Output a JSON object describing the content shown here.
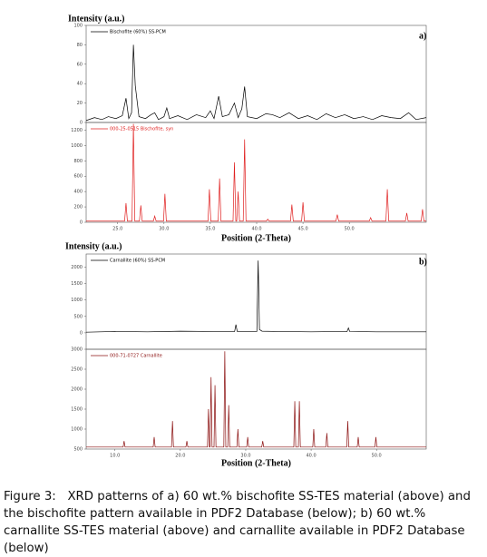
{
  "chart_data": [
    {
      "type": "line",
      "y_label": "Intensity (a.u.)",
      "panel_label": "a)",
      "xlim": [
        21.6,
        58.3
      ],
      "ylim": [
        0,
        100
      ],
      "yticks": [
        0,
        20,
        40,
        60,
        80,
        100
      ],
      "series": [
        {
          "name": "Bischofite (60%) SS-PCM",
          "color": "#000000",
          "x": [
            21.6,
            22.5,
            23.3,
            24.0,
            24.8,
            25.5,
            25.9,
            26.2,
            26.5,
            26.7,
            26.9,
            27.3,
            28.0,
            28.6,
            29.0,
            29.4,
            30.0,
            30.3,
            30.6,
            31.5,
            32.5,
            33.5,
            34.5,
            35.0,
            35.4,
            35.9,
            36.3,
            37.0,
            37.6,
            38.0,
            38.4,
            38.7,
            39.0,
            40.0,
            41.0,
            41.7,
            42.5,
            43.5,
            44.5,
            45.5,
            46.5,
            47.5,
            48.5,
            49.5,
            50.5,
            51.5,
            52.5,
            53.5,
            54.5,
            55.5,
            56.4,
            57.2,
            58.3
          ],
          "values": [
            2,
            5,
            3,
            6,
            4,
            7,
            25,
            4,
            10,
            80,
            38,
            6,
            4,
            8,
            10,
            3,
            6,
            15,
            4,
            7,
            3,
            8,
            5,
            12,
            4,
            27,
            6,
            8,
            20,
            5,
            14,
            37,
            6,
            4,
            9,
            8,
            5,
            10,
            4,
            7,
            3,
            9,
            5,
            8,
            4,
            6,
            3,
            7,
            5,
            4,
            10,
            3,
            5
          ]
        }
      ]
    },
    {
      "type": "line",
      "x_label": "Position (2-Theta)",
      "xlim": [
        21.6,
        58.3
      ],
      "ylim": [
        0,
        1300
      ],
      "yticks": [
        0,
        200,
        400,
        600,
        800,
        1000,
        1200
      ],
      "xticks": [
        {
          "value": 25,
          "label": "25.0"
        },
        {
          "value": 30,
          "label": "30.0"
        },
        {
          "value": 35,
          "label": "35.0"
        },
        {
          "value": 40,
          "label": "40.0"
        },
        {
          "value": 45,
          "label": "45.0"
        },
        {
          "value": 50,
          "label": "50.0"
        }
      ],
      "series": [
        {
          "name": "000-25-0515 Bischofite, syn",
          "color": "#e02020",
          "x": [
            21.6,
            25.75,
            25.9,
            26.05,
            26.55,
            26.7,
            26.85,
            27.35,
            27.5,
            27.65,
            28.85,
            29.0,
            29.15,
            29.95,
            30.1,
            30.25,
            34.75,
            34.9,
            35.05,
            35.85,
            36.0,
            36.15,
            37.45,
            37.6,
            37.75,
            37.85,
            38.0,
            38.15,
            38.55,
            38.7,
            38.85,
            41.05,
            41.2,
            41.35,
            43.65,
            43.8,
            43.95,
            44.85,
            45.0,
            45.15,
            48.55,
            48.7,
            48.85,
            52.15,
            52.3,
            52.45,
            53.95,
            54.1,
            54.25,
            56.05,
            56.2,
            56.35,
            57.75,
            57.9,
            58.05,
            58.3
          ],
          "values": [
            15,
            15,
            250,
            15,
            15,
            1280,
            15,
            15,
            220,
            15,
            15,
            80,
            15,
            15,
            370,
            15,
            15,
            430,
            15,
            15,
            570,
            15,
            15,
            780,
            15,
            15,
            400,
            15,
            15,
            1080,
            15,
            15,
            40,
            15,
            15,
            230,
            15,
            15,
            260,
            15,
            15,
            100,
            15,
            15,
            60,
            15,
            15,
            430,
            15,
            15,
            120,
            15,
            15,
            170,
            15,
            15
          ]
        }
      ]
    },
    {
      "type": "line",
      "y_label": "Intensity (a.u.)",
      "panel_label": "b)",
      "xlim": [
        5.6,
        57.6
      ],
      "ylim": [
        -500,
        2400
      ],
      "yticks": [
        0,
        500,
        1000,
        1500,
        2000
      ],
      "series": [
        {
          "name": "Carnallite (60%) SS-PCM",
          "color": "#000000",
          "x": [
            5.6,
            10,
            15,
            20,
            25,
            28.3,
            28.5,
            28.7,
            31.7,
            31.9,
            32.1,
            32.5,
            35,
            40,
            45.5,
            45.7,
            45.9,
            50,
            57.6
          ],
          "values": [
            20,
            40,
            30,
            50,
            40,
            40,
            250,
            40,
            40,
            2200,
            100,
            50,
            40,
            30,
            40,
            150,
            40,
            30,
            30
          ]
        }
      ]
    },
    {
      "type": "line",
      "x_label": "Position (2-Theta)",
      "xlim": [
        5.6,
        57.6
      ],
      "ylim": [
        500,
        3000
      ],
      "yticks": [
        500,
        1000,
        1500,
        2000,
        2500,
        3000
      ],
      "xticks": [
        {
          "value": 10,
          "label": "10.0"
        },
        {
          "value": 20,
          "label": "20.0"
        },
        {
          "value": 30,
          "label": "30.0"
        },
        {
          "value": 40,
          "label": "40.0"
        },
        {
          "value": 50,
          "label": "50.0"
        }
      ],
      "series": [
        {
          "name": "000-71-0727 Carnallite",
          "color": "#8b1010",
          "x": [
            5.6,
            11.25,
            11.4,
            11.55,
            15.85,
            16.0,
            16.15,
            18.65,
            18.8,
            18.95,
            20.85,
            21.0,
            21.15,
            24.15,
            24.3,
            24.45,
            24.55,
            24.7,
            24.85,
            25.15,
            25.3,
            25.45,
            26.65,
            26.8,
            26.95,
            27.25,
            27.4,
            27.55,
            28.65,
            28.8,
            28.95,
            30.15,
            30.3,
            30.45,
            32.45,
            32.6,
            32.75,
            37.35,
            37.5,
            37.65,
            38.05,
            38.2,
            38.35,
            40.25,
            40.4,
            40.55,
            42.25,
            42.4,
            42.55,
            45.45,
            45.6,
            45.75,
            47.05,
            47.2,
            47.35,
            49.75,
            49.9,
            50.05,
            57.6
          ],
          "values": [
            550,
            550,
            700,
            550,
            550,
            800,
            550,
            550,
            1200,
            550,
            550,
            700,
            550,
            550,
            1500,
            550,
            550,
            2300,
            550,
            550,
            2100,
            550,
            550,
            2950,
            550,
            550,
            1600,
            550,
            550,
            1000,
            550,
            550,
            800,
            550,
            550,
            700,
            550,
            550,
            1700,
            550,
            550,
            1700,
            550,
            550,
            1000,
            550,
            550,
            900,
            550,
            550,
            1200,
            550,
            550,
            800,
            550,
            550,
            800,
            550,
            550
          ]
        }
      ]
    }
  ],
  "caption": {
    "label": "Figure 3:",
    "text": "XRD patterns of a) 60 wt.% bischofite SS-TES material (above) and the bischofite pattern available in PDF2 Database (below); b) 60 wt.% carnallite SS-TES material (above) and carnallite available in PDF2 Database (below)"
  }
}
